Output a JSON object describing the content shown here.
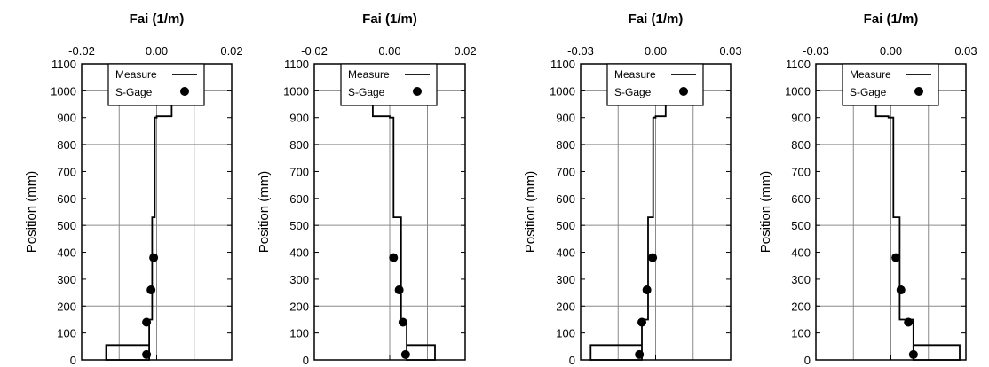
{
  "chart_data": [
    {
      "type": "line",
      "xlabel": "Fai (1/m)",
      "ylabel": "Position (mm)",
      "xlim": [
        -0.02,
        0.02
      ],
      "ylim": [
        0,
        1100
      ],
      "xticks": [
        "-0.02",
        "0.00",
        "0.02"
      ],
      "yticks": [
        "0",
        "100",
        "200",
        "300",
        "400",
        "500",
        "600",
        "700",
        "800",
        "900",
        "1000",
        "1100"
      ],
      "grid": true,
      "legend": {
        "position": "top-center",
        "entries": [
          "Measure",
          "S-Gage"
        ]
      },
      "series": [
        {
          "name": "Measure",
          "type": "step-line",
          "points": [
            [
              -0.002,
              0
            ],
            [
              -0.002,
              55
            ],
            [
              -0.0135,
              55
            ],
            [
              -0.0135,
              0
            ],
            [
              -0.002,
              0
            ],
            [
              -0.002,
              55
            ],
            [
              -0.002,
              150
            ],
            [
              -0.0012,
              150
            ],
            [
              -0.0012,
              530
            ],
            [
              -0.0005,
              530
            ],
            [
              -0.0005,
              900
            ],
            [
              0.0,
              900
            ],
            [
              0.0,
              905
            ],
            [
              0.004,
              905
            ],
            [
              0.004,
              960
            ],
            [
              0.004,
              1040
            ]
          ]
        },
        {
          "name": "S-Gage",
          "type": "scatter",
          "points": [
            [
              -0.0027,
              20
            ],
            [
              -0.0027,
              140
            ],
            [
              -0.0015,
              260
            ],
            [
              -0.0008,
              380
            ]
          ]
        }
      ]
    },
    {
      "type": "line",
      "xlabel": "Fai (1/m)",
      "ylabel": "Position (mm)",
      "xlim": [
        -0.02,
        0.02
      ],
      "ylim": [
        0,
        1100
      ],
      "xticks": [
        "-0.02",
        "0.00",
        "0.02"
      ],
      "yticks": [
        "0",
        "100",
        "200",
        "300",
        "400",
        "500",
        "600",
        "700",
        "800",
        "900",
        "1000",
        "1100"
      ],
      "grid": true,
      "legend": {
        "position": "top-center",
        "entries": [
          "Measure",
          "S-Gage"
        ]
      },
      "series": [
        {
          "name": "Measure",
          "type": "step-line",
          "points": [
            [
              0.0045,
              0
            ],
            [
              0.0045,
              55
            ],
            [
              0.012,
              55
            ],
            [
              0.012,
              0
            ],
            [
              0.0045,
              0
            ],
            [
              0.0045,
              55
            ],
            [
              0.0045,
              145
            ],
            [
              0.003,
              145
            ],
            [
              0.003,
              530
            ],
            [
              0.001,
              530
            ],
            [
              0.001,
              900
            ],
            [
              0.0,
              900
            ],
            [
              0.0,
              905
            ],
            [
              -0.0045,
              905
            ],
            [
              -0.0045,
              960
            ],
            [
              -0.0045,
              1040
            ]
          ]
        },
        {
          "name": "S-Gage",
          "type": "scatter",
          "points": [
            [
              0.0042,
              20
            ],
            [
              0.0035,
              140
            ],
            [
              0.0025,
              260
            ],
            [
              0.001,
              380
            ]
          ]
        }
      ]
    },
    {
      "type": "line",
      "xlabel": "Fai (1/m)",
      "ylabel": "Position (mm)",
      "xlim": [
        -0.03,
        0.03
      ],
      "ylim": [
        0,
        1100
      ],
      "xticks": [
        "-0.03",
        "0.00",
        "0.03"
      ],
      "yticks": [
        "0",
        "100",
        "200",
        "300",
        "400",
        "500",
        "600",
        "700",
        "800",
        "900",
        "1000",
        "1100"
      ],
      "grid": true,
      "legend": {
        "position": "top-center",
        "entries": [
          "Measure",
          "S-Gage"
        ]
      },
      "series": [
        {
          "name": "Measure",
          "type": "step-line",
          "points": [
            [
              -0.0055,
              0
            ],
            [
              -0.0055,
              55
            ],
            [
              -0.026,
              55
            ],
            [
              -0.026,
              0
            ],
            [
              -0.0055,
              0
            ],
            [
              -0.0055,
              55
            ],
            [
              -0.0055,
              150
            ],
            [
              -0.003,
              150
            ],
            [
              -0.003,
              530
            ],
            [
              -0.001,
              530
            ],
            [
              -0.001,
              900
            ],
            [
              0.0,
              900
            ],
            [
              0.0,
              905
            ],
            [
              0.004,
              905
            ],
            [
              0.004,
              960
            ],
            [
              0.004,
              1040
            ]
          ]
        },
        {
          "name": "S-Gage",
          "type": "scatter",
          "points": [
            [
              -0.0065,
              20
            ],
            [
              -0.0055,
              140
            ],
            [
              -0.0035,
              260
            ],
            [
              -0.0012,
              380
            ]
          ]
        }
      ]
    },
    {
      "type": "line",
      "xlabel": "Fai (1/m)",
      "ylabel": "Position (mm)",
      "xlim": [
        -0.03,
        0.03
      ],
      "ylim": [
        0,
        1100
      ],
      "xticks": [
        "-0.03",
        "0.00",
        "0.03"
      ],
      "yticks": [
        "0",
        "100",
        "200",
        "300",
        "400",
        "500",
        "600",
        "700",
        "800",
        "900",
        "1000",
        "1100"
      ],
      "grid": true,
      "legend": {
        "position": "top-center",
        "entries": [
          "Measure",
          "S-Gage"
        ]
      },
      "series": [
        {
          "name": "Measure",
          "type": "step-line",
          "points": [
            [
              0.009,
              0
            ],
            [
              0.009,
              55
            ],
            [
              0.0275,
              55
            ],
            [
              0.0275,
              0
            ],
            [
              0.009,
              0
            ],
            [
              0.009,
              55
            ],
            [
              0.009,
              150
            ],
            [
              0.0035,
              150
            ],
            [
              0.0035,
              530
            ],
            [
              0.001,
              530
            ],
            [
              0.001,
              900
            ],
            [
              -0.001,
              900
            ],
            [
              -0.001,
              905
            ],
            [
              -0.006,
              905
            ],
            [
              -0.006,
              960
            ],
            [
              -0.006,
              1040
            ]
          ]
        },
        {
          "name": "S-Gage",
          "type": "scatter",
          "points": [
            [
              0.009,
              20
            ],
            [
              0.007,
              140
            ],
            [
              0.004,
              260
            ],
            [
              0.002,
              380
            ]
          ]
        }
      ]
    }
  ]
}
